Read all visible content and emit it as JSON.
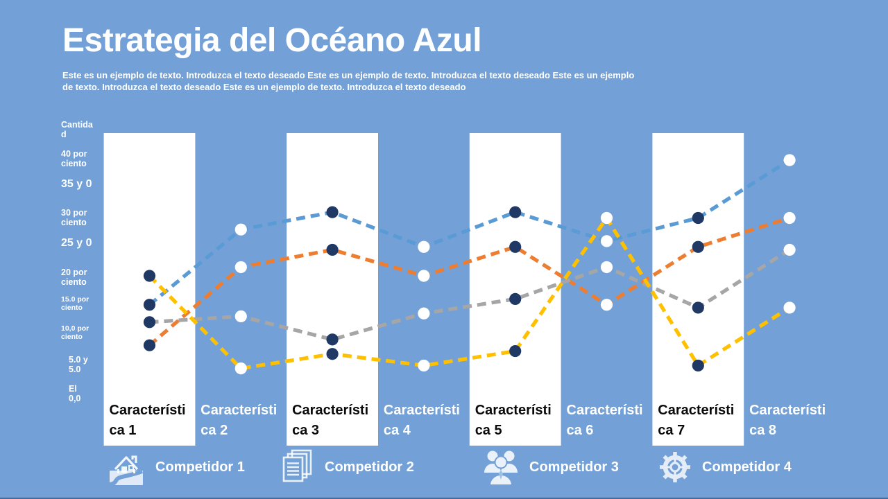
{
  "slide": {
    "title": "Estrategia del Océano Azul",
    "subtitle": "Este es un ejemplo de texto. Introduzca el texto deseado Este es un ejemplo de texto. Introduzca el texto deseado Este es un ejemplo de texto. Introduzca el texto deseado Este es un ejemplo de texto. Introduzca el texto deseado",
    "background_color": "#73A1D7",
    "text_color": "#FFFFFF"
  },
  "chart_data": {
    "type": "line",
    "title": "Estrategia del Océano Azul",
    "line_style": "dashed",
    "grid": false,
    "legend_position": "bottom",
    "xlabel": "",
    "ylabel": "Cantidad",
    "ylim": [
      0,
      44
    ],
    "categories": [
      "Característica 1",
      "Característica 2",
      "Característica 3",
      "Característica 4",
      "Característica 5",
      "Característica 6",
      "Característica 7",
      "Característica 8"
    ],
    "yticklabels": [
      "Cantidad",
      "40 por ciento",
      "35 y 0",
      "30 por ciento",
      "25 y 0",
      "20 por ciento",
      "15.0 por ciento",
      "10,0 por ciento",
      "5.0 y 5.0",
      "El 0,0"
    ],
    "series": [
      {
        "name": "Competidor 1",
        "color": "#5B9BD5",
        "values": [
          15,
          28,
          31,
          25,
          31,
          26,
          30,
          40
        ]
      },
      {
        "name": "Competidor 2",
        "color": "#ED7D31",
        "values": [
          8,
          21.5,
          24.5,
          20,
          25,
          15,
          25,
          30
        ]
      },
      {
        "name": "Competidor 3",
        "color": "#A6A6A6",
        "values": [
          12,
          13,
          9,
          13.5,
          16,
          21.5,
          14.5,
          24.5
        ]
      },
      {
        "name": "Competidor 4",
        "color": "#FFC000",
        "values": [
          20,
          4,
          6.5,
          4.5,
          7,
          30,
          4.5,
          14.5
        ]
      }
    ],
    "column_band_color": "#FFFFFF",
    "marker_color_on_white_band": "#1F3864",
    "marker_color_on_blue_background": "#FFFFFF"
  },
  "legend": {
    "items": [
      {
        "label": "Competidor 1",
        "icon": "house-icon"
      },
      {
        "label": "Competidor 2",
        "icon": "documents-icon"
      },
      {
        "label": "Competidor 3",
        "icon": "people-icon"
      },
      {
        "label": "Competidor 4",
        "icon": "gear-icon"
      }
    ]
  }
}
